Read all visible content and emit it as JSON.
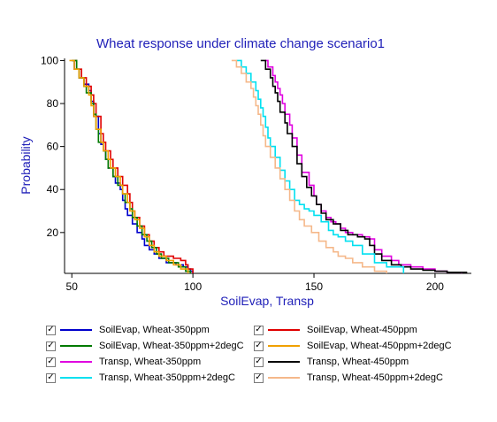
{
  "chart_data": {
    "type": "line",
    "title": "Wheat response under climate change scenario1",
    "xlabel": "SoilEvap, Transp",
    "ylabel": "Probability",
    "xlim": [
      47,
      215
    ],
    "ylim": [
      1,
      101
    ],
    "xticks": [
      50,
      100,
      150,
      200
    ],
    "yticks": [
      20,
      40,
      60,
      80,
      100
    ],
    "grid": false,
    "legend_position": "bottom",
    "series": [
      {
        "name": "SoilEvap, Wheat-350ppm",
        "color": "#0000cc",
        "checked": true,
        "x": [
          50,
          51,
          53,
          55,
          57,
          58,
          59,
          61,
          62,
          63,
          64,
          65,
          67,
          68,
          70,
          71,
          72,
          73,
          75,
          77,
          79,
          80,
          82,
          84,
          86,
          89,
          93,
          96,
          98,
          99,
          100
        ],
        "y": [
          100,
          96,
          92,
          89,
          86,
          81,
          74,
          66,
          61,
          58,
          54,
          50,
          46,
          43,
          40,
          35,
          31,
          28,
          24,
          20,
          17,
          14,
          12,
          10,
          8,
          6,
          5,
          4,
          3,
          2,
          1
        ]
      },
      {
        "name": "SoilEvap, Wheat-450ppm",
        "color": "#e00000",
        "checked": true,
        "x": [
          51,
          52,
          54,
          56,
          58,
          59,
          60,
          62,
          63,
          64,
          66,
          67,
          69,
          71,
          73,
          74,
          75,
          76,
          78,
          80,
          82,
          84,
          86,
          88,
          92,
          95,
          97,
          98,
          100
        ],
        "y": [
          100,
          96,
          92,
          88,
          84,
          80,
          74,
          66,
          62,
          58,
          54,
          50,
          46,
          42,
          38,
          34,
          30,
          27,
          23,
          19,
          16,
          13,
          11,
          9,
          8,
          7,
          5,
          3,
          1
        ]
      },
      {
        "name": "SoilEvap, Wheat-350ppm+2degC",
        "color": "#007a00",
        "checked": true,
        "x": [
          50,
          52,
          53,
          55,
          56,
          58,
          59,
          60,
          61,
          63,
          64,
          65,
          67,
          69,
          71,
          72,
          74,
          75,
          77,
          79,
          81,
          83,
          85,
          87,
          90,
          94,
          97,
          99
        ],
        "y": [
          100,
          96,
          92,
          88,
          85,
          80,
          75,
          68,
          62,
          58,
          54,
          50,
          46,
          42,
          38,
          34,
          31,
          27,
          23,
          19,
          16,
          13,
          10,
          8,
          6,
          4,
          2,
          1
        ]
      },
      {
        "name": "SoilEvap, Wheat-450ppm+2degC",
        "color": "#f0a000",
        "checked": true,
        "x": [
          49,
          51,
          53,
          55,
          57,
          58,
          59,
          60,
          62,
          63,
          65,
          66,
          68,
          70,
          71,
          73,
          74,
          76,
          78,
          80,
          82,
          84,
          86,
          89,
          92,
          95,
          98
        ],
        "y": [
          100,
          96,
          92,
          88,
          84,
          79,
          74,
          68,
          62,
          58,
          54,
          50,
          46,
          42,
          38,
          34,
          30,
          26,
          22,
          18,
          14,
          11,
          9,
          7,
          5,
          3,
          1
        ]
      },
      {
        "name": "Transp, Wheat-350ppm",
        "color": "#e000e0",
        "checked": true,
        "x": [
          130,
          131,
          133,
          134,
          135,
          136,
          137,
          138,
          140,
          141,
          143,
          145,
          148,
          150,
          151,
          153,
          155,
          157,
          159,
          161,
          163,
          166,
          170,
          173,
          175,
          178,
          182,
          185,
          190,
          195,
          200,
          205,
          211
        ],
        "y": [
          100,
          97,
          93,
          90,
          87,
          84,
          80,
          75,
          70,
          64,
          56,
          48,
          42,
          37,
          33,
          30,
          27,
          25,
          24,
          22,
          20,
          19,
          18,
          17,
          12,
          9,
          7,
          5,
          4,
          3,
          2,
          1.5,
          1
        ]
      },
      {
        "name": "Transp, Wheat-450ppm",
        "color": "#000000",
        "checked": true,
        "x": [
          128,
          130,
          132,
          133,
          134,
          135,
          136,
          138,
          139,
          141,
          143,
          145,
          147,
          149,
          151,
          153,
          155,
          158,
          161,
          164,
          168,
          171,
          173,
          175,
          178,
          182,
          186,
          190,
          195,
          200,
          205,
          213
        ],
        "y": [
          100,
          96,
          92,
          88,
          85,
          81,
          76,
          71,
          66,
          60,
          52,
          46,
          41,
          37,
          33,
          29,
          26,
          24,
          21,
          19,
          18,
          17,
          14,
          10,
          7,
          5,
          4,
          3,
          2.5,
          2,
          1.5,
          1
        ]
      },
      {
        "name": "Transp, Wheat-350ppm+2degC",
        "color": "#00e0f0",
        "checked": true,
        "x": [
          118,
          120,
          122,
          124,
          126,
          127,
          128,
          129,
          130,
          131,
          132,
          134,
          136,
          138,
          140,
          142,
          144,
          146,
          148,
          150,
          153,
          156,
          158,
          160,
          163,
          166,
          170,
          175,
          180,
          187
        ],
        "y": [
          100,
          97,
          94,
          90,
          86,
          82,
          78,
          74,
          69,
          64,
          60,
          55,
          49,
          44,
          40,
          35,
          33,
          31,
          30,
          28,
          25,
          21,
          19,
          18,
          16,
          14,
          10,
          6,
          4,
          1
        ]
      },
      {
        "name": "Transp, Wheat-450ppm+2degC",
        "color": "#f5b88a",
        "checked": true,
        "x": [
          116,
          118,
          120,
          122,
          124,
          125,
          126,
          127,
          128,
          129,
          130,
          132,
          134,
          136,
          138,
          140,
          142,
          144,
          146,
          149,
          152,
          155,
          158,
          160,
          163,
          166,
          170,
          175,
          180
        ],
        "y": [
          100,
          97,
          94,
          90,
          87,
          83,
          79,
          75,
          70,
          65,
          60,
          55,
          50,
          45,
          40,
          35,
          30,
          26,
          23,
          20,
          16,
          13,
          11,
          9,
          8,
          6,
          4,
          2,
          1
        ]
      }
    ],
    "legend_layout": [
      [
        "SoilEvap, Wheat-350ppm",
        "SoilEvap, Wheat-450ppm"
      ],
      [
        "SoilEvap, Wheat-350ppm+2degC",
        "SoilEvap, Wheat-450ppm+2degC"
      ],
      [
        "Transp, Wheat-350ppm",
        "Transp, Wheat-450ppm"
      ],
      [
        "Transp, Wheat-350ppm+2degC",
        "Transp, Wheat-450ppm+2degC"
      ]
    ],
    "checkmark": "✓"
  }
}
